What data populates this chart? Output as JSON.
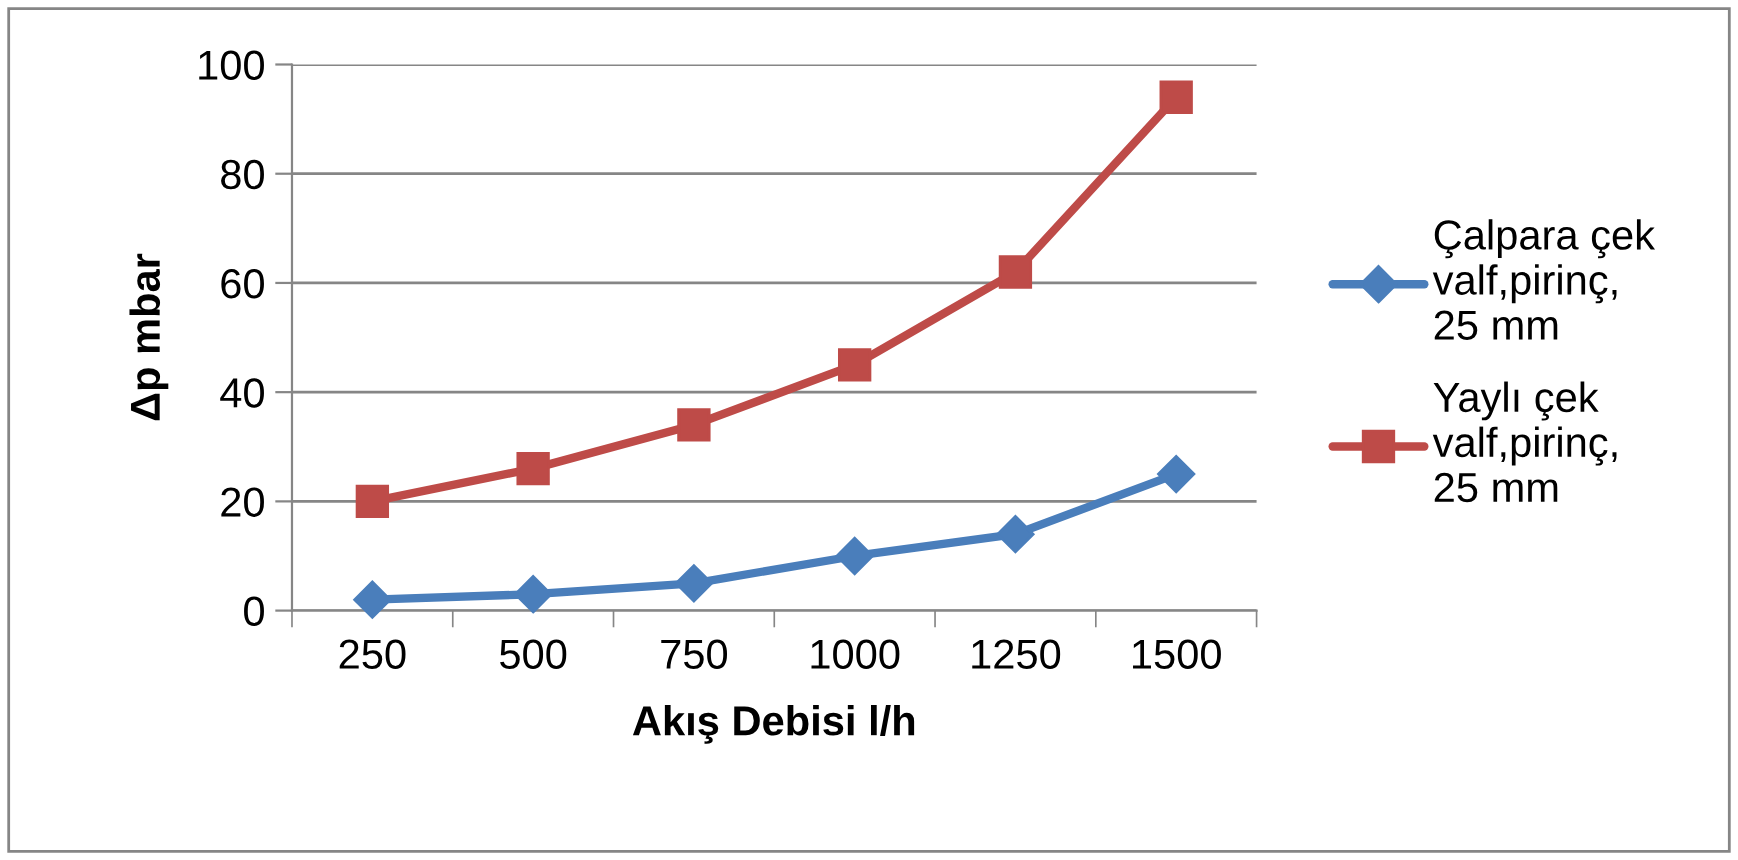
{
  "chart_data": {
    "type": "line",
    "xlabel": "Akış Debisi l/h",
    "ylabel": "Δp mbar",
    "categories": [
      "250",
      "500",
      "750",
      "1000",
      "1250",
      "1500"
    ],
    "series": [
      {
        "name": "Çalpara çek valf,pirinç, 25 mm",
        "color": "#4a7ebb",
        "marker": "diamond",
        "values": [
          2,
          3,
          5,
          10,
          14,
          25
        ]
      },
      {
        "name": "Yaylı çek valf,pirinç, 25 mm",
        "color": "#be4b48",
        "marker": "square",
        "values": [
          20,
          26,
          34,
          45,
          62,
          94
        ]
      }
    ],
    "ylim": [
      0,
      100
    ],
    "yticks": [
      0,
      20,
      40,
      60,
      80,
      100
    ],
    "grid": "y",
    "legend": "right",
    "line_style": "solid"
  }
}
